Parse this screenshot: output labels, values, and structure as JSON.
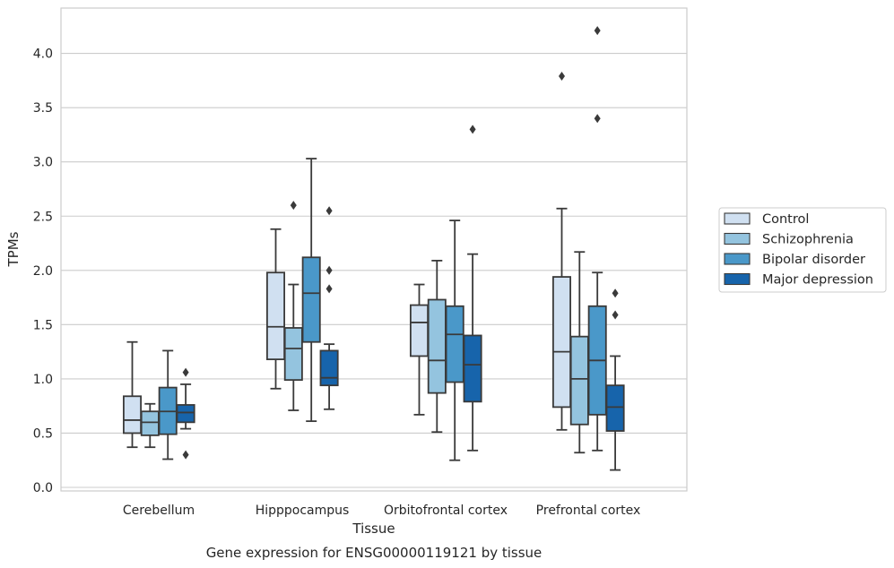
{
  "chart_data": {
    "type": "boxplot",
    "title": "Gene expression for ENSG00000119121 by tissue",
    "xlabel": "Tissue",
    "ylabel": "TPMs",
    "ylim": [
      -0.03,
      4.4
    ],
    "yticks": [
      "0.0",
      "0.5",
      "1.0",
      "1.5",
      "2.0",
      "2.5",
      "3.0",
      "3.5",
      "4.0"
    ],
    "ytick_values": [
      0.0,
      0.5,
      1.0,
      1.5,
      2.0,
      2.5,
      3.0,
      3.5,
      4.0
    ],
    "grid": "horizontal",
    "legend_placement": "right",
    "categories": [
      "Cerebellum",
      "Hipppocampus",
      "Orbitofrontal cortex",
      "Prefrontal cortex"
    ],
    "series": [
      {
        "name": "Control",
        "color": "#d0e0f1",
        "boxes": [
          {
            "whislo": 0.37,
            "q1": 0.5,
            "med": 0.62,
            "q3": 0.84,
            "whishi": 1.34,
            "fliers": []
          },
          {
            "whislo": 0.91,
            "q1": 1.18,
            "med": 1.48,
            "q3": 1.98,
            "whishi": 2.38,
            "fliers": []
          },
          {
            "whislo": 0.67,
            "q1": 1.21,
            "med": 1.52,
            "q3": 1.68,
            "whishi": 1.87,
            "fliers": []
          },
          {
            "whislo": 0.53,
            "q1": 0.74,
            "med": 1.25,
            "q3": 1.94,
            "whishi": 2.57,
            "fliers": [
              3.79
            ]
          }
        ]
      },
      {
        "name": "Schizophrenia",
        "color": "#94c4df",
        "boxes": [
          {
            "whislo": 0.37,
            "q1": 0.48,
            "med": 0.6,
            "q3": 0.7,
            "whishi": 0.77,
            "fliers": []
          },
          {
            "whislo": 0.71,
            "q1": 0.99,
            "med": 1.28,
            "q3": 1.47,
            "whishi": 1.87,
            "fliers": [
              2.6
            ]
          },
          {
            "whislo": 0.51,
            "q1": 0.87,
            "med": 1.17,
            "q3": 1.73,
            "whishi": 2.09,
            "fliers": []
          },
          {
            "whislo": 0.32,
            "q1": 0.58,
            "med": 1.0,
            "q3": 1.39,
            "whishi": 2.17,
            "fliers": []
          }
        ]
      },
      {
        "name": "Bipolar disorder",
        "color": "#4a98c9",
        "boxes": [
          {
            "whislo": 0.26,
            "q1": 0.49,
            "med": 0.7,
            "q3": 0.92,
            "whishi": 1.26,
            "fliers": []
          },
          {
            "whislo": 0.61,
            "q1": 1.34,
            "med": 1.79,
            "q3": 2.12,
            "whishi": 3.03,
            "fliers": []
          },
          {
            "whislo": 0.25,
            "q1": 0.97,
            "med": 1.41,
            "q3": 1.67,
            "whishi": 2.46,
            "fliers": []
          },
          {
            "whislo": 0.34,
            "q1": 0.67,
            "med": 1.17,
            "q3": 1.67,
            "whishi": 1.98,
            "fliers": [
              3.4,
              4.21
            ]
          }
        ]
      },
      {
        "name": "Major depression",
        "color": "#1764ab",
        "boxes": [
          {
            "whislo": 0.54,
            "q1": 0.6,
            "med": 0.69,
            "q3": 0.76,
            "whishi": 0.95,
            "fliers": [
              1.06,
              0.3
            ]
          },
          {
            "whislo": 0.72,
            "q1": 0.94,
            "med": 1.01,
            "q3": 1.26,
            "whishi": 1.32,
            "fliers": [
              1.83,
              2.0,
              2.55
            ]
          },
          {
            "whislo": 0.34,
            "q1": 0.79,
            "med": 1.13,
            "q3": 1.4,
            "whishi": 2.15,
            "fliers": [
              3.3
            ]
          },
          {
            "whislo": 0.16,
            "q1": 0.52,
            "med": 0.74,
            "q3": 0.94,
            "whishi": 1.21,
            "fliers": [
              1.59,
              1.79
            ]
          }
        ]
      }
    ]
  },
  "colors": {
    "edge": "#3a3a3a",
    "grid": "#cccccc",
    "frame": "#cccccc",
    "text": "#262626"
  }
}
